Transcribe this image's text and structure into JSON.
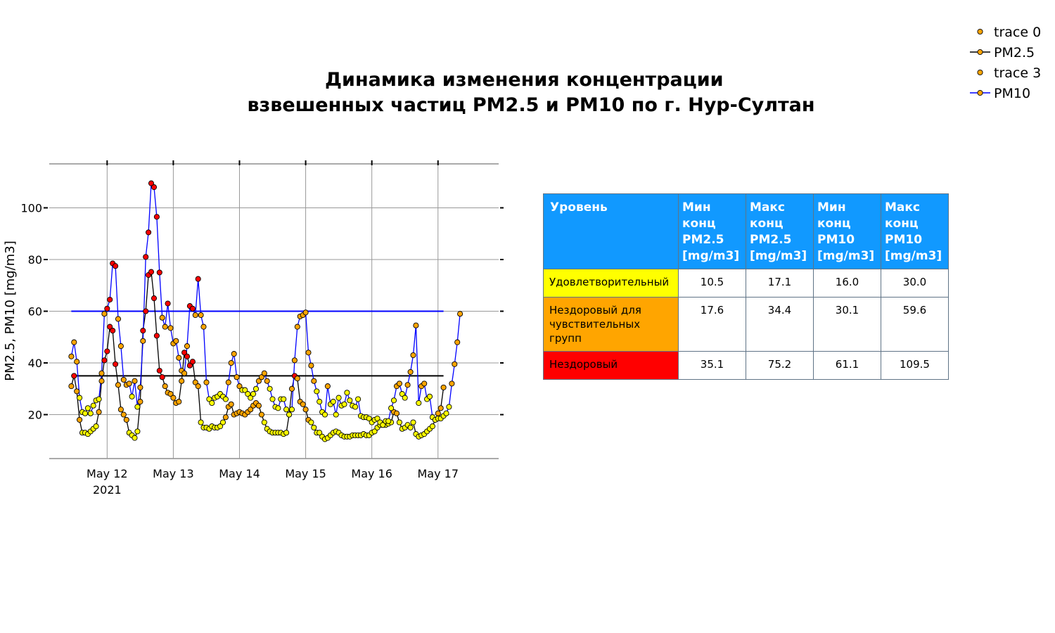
{
  "title_lines": [
    "Динамика изменения концентрации",
    "взвешенных частиц PM2.5 и PM10 по г. Нур-Султан"
  ],
  "legend": {
    "items": [
      {
        "label": "trace 0",
        "kind": "marker"
      },
      {
        "label": "PM2.5",
        "kind": "line-marker",
        "color": "#000000"
      },
      {
        "label": "trace 3",
        "kind": "marker"
      },
      {
        "label": "PM10",
        "kind": "line-marker",
        "color": "#0000ff"
      }
    ]
  },
  "table": {
    "columns": [
      "Уровень",
      "Мин\n конц\nPM2.5\n[mg/m3]",
      "Макс\nконц\nPM2.5\n[mg/m3]",
      "Мин\n конц\nPM10\n[mg/m3]",
      "Макс\nконц\nPM10\n[mg/m3]"
    ],
    "rows": [
      {
        "level": "Удовлетворительный",
        "color": "#ffff00",
        "pm25_min": "10.5",
        "pm25_max": "17.1",
        "pm10_min": "16.0",
        "pm10_max": "30.0"
      },
      {
        "level": "Нездоровый для чувствительных групп",
        "color": "#ffa500",
        "pm25_min": "17.6",
        "pm25_max": "34.4",
        "pm10_min": "30.1",
        "pm10_max": "59.6"
      },
      {
        "level": "Нездоровый",
        "color": "#ff0000",
        "pm25_min": "35.1",
        "pm25_max": "75.2",
        "pm10_min": "61.1",
        "pm10_max": "109.5"
      }
    ]
  },
  "chart_data": {
    "type": "line",
    "ylabel": "PM2.5, PM10 [mg/m3]",
    "xlabel": "",
    "x_start": "2021-05-11T11:00",
    "x_step_hours": 1,
    "x_range": [
      "2021-05-11T03:00",
      "2021-05-17T22:00"
    ],
    "ylim": [
      3,
      117
    ],
    "yticks": [
      20,
      40,
      60,
      80,
      100
    ],
    "xticks": [
      {
        "date": "2021-05-12",
        "label": "May 12",
        "sublabel": "2021"
      },
      {
        "date": "2021-05-13",
        "label": "May 13",
        "sublabel": ""
      },
      {
        "date": "2021-05-14",
        "label": "May 14",
        "sublabel": ""
      },
      {
        "date": "2021-05-15",
        "label": "May 15",
        "sublabel": ""
      },
      {
        "date": "2021-05-16",
        "label": "May 16",
        "sublabel": ""
      },
      {
        "date": "2021-05-17",
        "label": "May 17",
        "sublabel": ""
      }
    ],
    "grid": true,
    "legend_position": "top-right",
    "thresholds": [
      {
        "series": "PM2.5",
        "value": 35,
        "color": "#000000"
      },
      {
        "series": "PM10",
        "value": 60,
        "color": "#0000ff"
      }
    ],
    "level_colors": {
      "good": "#ffff00",
      "sensitive": "#ffa500",
      "unhealthy": "#ff0000"
    },
    "series": [
      {
        "name": "PM2.5",
        "color": "#000000",
        "values": [
          31,
          35,
          29,
          18,
          13,
          13,
          12.5,
          13.5,
          14.5,
          15.5,
          21,
          33,
          41,
          44.5,
          54,
          52.5,
          39.5,
          31.5,
          22,
          20,
          18,
          13,
          12,
          11,
          13.5,
          25,
          52.5,
          60,
          74,
          75.2,
          65,
          50.5,
          37,
          34.5,
          31,
          28.5,
          28,
          26.5,
          24.5,
          25,
          33,
          44,
          42.5,
          39,
          40.5,
          32.5,
          31,
          17,
          15,
          15,
          14.5,
          15.5,
          15,
          15,
          15.5,
          17,
          19,
          23,
          24,
          20,
          20.5,
          21,
          20.5,
          20,
          21,
          22,
          23.5,
          24.5,
          23.5,
          20,
          17,
          14.5,
          13.5,
          13,
          13,
          13,
          13,
          12.5,
          13,
          20,
          30,
          35,
          34,
          25,
          24,
          22,
          18,
          17,
          15,
          13,
          13,
          11.5,
          10.5,
          11,
          12,
          13,
          13.5,
          13,
          12,
          11.5,
          11.5,
          11.5,
          12,
          12,
          12,
          12,
          12.5,
          12,
          12,
          13,
          13.5,
          15,
          16,
          16,
          16,
          16.5,
          17,
          21,
          20.5,
          17,
          14.5,
          15,
          16,
          15,
          17,
          12.5,
          11.5,
          12,
          12.5,
          13.5,
          14.5,
          15.5,
          18,
          20.5,
          22.5,
          30.5
        ]
      },
      {
        "name": "PM10",
        "color": "#0000ff",
        "values": [
          42.5,
          48,
          40.5,
          26.5,
          21,
          20.5,
          22.5,
          20.5,
          23.5,
          25.5,
          26,
          36,
          59,
          61,
          64.5,
          78.5,
          77.5,
          57,
          46.5,
          33.5,
          31.5,
          32,
          27,
          33,
          23,
          30.5,
          48.5,
          81,
          90.5,
          109.5,
          108,
          96.5,
          75,
          57.5,
          54,
          63,
          53.5,
          47.5,
          48.5,
          42,
          37,
          36,
          46.5,
          62,
          61,
          58.5,
          72.5,
          58.5,
          54,
          32.5,
          26,
          24.5,
          26.5,
          27,
          28,
          27,
          26,
          32.5,
          40,
          43.5,
          34.5,
          31,
          29.5,
          29.5,
          28,
          26.5,
          28,
          30,
          33,
          34.5,
          36,
          33,
          30,
          26,
          23,
          22.5,
          26,
          26,
          22,
          20,
          22,
          41,
          54,
          58,
          58.5,
          59.5,
          44,
          39,
          33,
          29,
          25,
          21,
          20,
          31,
          24,
          25,
          20,
          26.5,
          23.5,
          24,
          28.5,
          25.5,
          23.5,
          23,
          26,
          19.5,
          19,
          19,
          18.5,
          17,
          18,
          18.5,
          17,
          16,
          17.5,
          17.5,
          22.5,
          25.5,
          31,
          32,
          28,
          26.5,
          31.5,
          36.5,
          43,
          54.5,
          24.5,
          31,
          32,
          26,
          27,
          19,
          18,
          18.5,
          18.5,
          19.5,
          20.5,
          23,
          32,
          39.5,
          48,
          59
        ]
      }
    ]
  }
}
